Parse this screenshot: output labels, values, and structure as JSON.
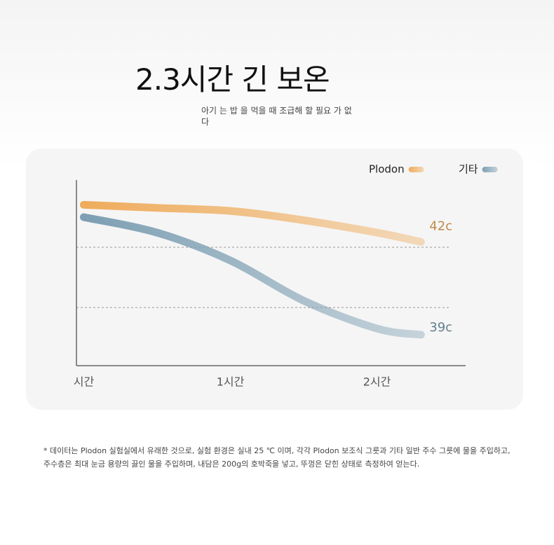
{
  "chart_data": {
    "type": "line",
    "title": "2.3시간 긴 보온",
    "subtitle": "아기 는 밥 을 먹을 때 조급해 할 필요 가 없다",
    "footnote": "* 데이터는 Plodon 실험실에서 유래한 것으로, 실험 환경은 실내 25 ℃ 이며, 각각 Plodon 보조식 그릇과 기타 일반 주수 그릇에 물을 주입하고, 주수층은 최대 눈금 용량의 끓인 물을 주입하며, 내담은 200g의 호박죽을 넣고, 뚜껑은 닫힌 상태로 측정하여 얻는다.",
    "x": [
      0,
      0.5,
      1,
      1.5,
      2,
      2.3
    ],
    "xlim": [
      -0.05,
      2.6
    ],
    "xticks": [
      {
        "value": 0,
        "label": "시간"
      },
      {
        "value": 1,
        "label": "1시간"
      },
      {
        "value": 2,
        "label": "2시간"
      }
    ],
    "ylim": [
      38,
      44
    ],
    "legend": "top-right",
    "series": [
      {
        "name": "Plodon",
        "color": "#efac5c",
        "values": [
          43.2,
          43.1,
          43.0,
          42.7,
          42.3,
          42
        ],
        "value_labels": [
          null,
          null,
          null,
          null,
          null,
          "42c"
        ]
      },
      {
        "name": "기타",
        "color": "#7d9fb3",
        "values": [
          42.8,
          42.3,
          41.4,
          40.1,
          39.2,
          39
        ],
        "value_labels": [
          null,
          null,
          null,
          null,
          null,
          "39c"
        ]
      }
    ]
  }
}
